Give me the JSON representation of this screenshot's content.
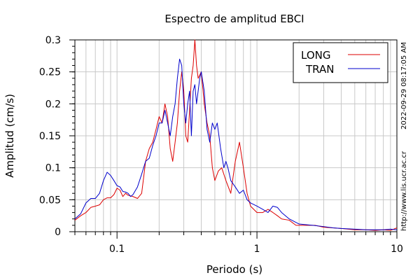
{
  "chart_data": {
    "type": "line",
    "title": "Espectro de amplitud EBCI",
    "xlabel": "Periodo (s)",
    "ylabel": "Amplitud (cm/s)",
    "x_scale": "log",
    "xlim": [
      0.05,
      10
    ],
    "ylim": [
      0,
      0.3
    ],
    "x_ticks": [
      {
        "value": 0.1,
        "label": "0.1"
      },
      {
        "value": 1,
        "label": "1"
      },
      {
        "value": 10,
        "label": "10"
      }
    ],
    "y_ticks": [
      {
        "value": 0,
        "label": "0"
      },
      {
        "value": 0.05,
        "label": "0.05"
      },
      {
        "value": 0.1,
        "label": "0.1"
      },
      {
        "value": 0.15,
        "label": "0.15"
      },
      {
        "value": 0.2,
        "label": "0.2"
      },
      {
        "value": 0.25,
        "label": "0.25"
      },
      {
        "value": 0.3,
        "label": "0.3"
      }
    ],
    "grid": true,
    "legend_position": "top-right",
    "series": [
      {
        "name": "LONG",
        "color": "#dd0000",
        "points": [
          [
            0.05,
            0.018
          ],
          [
            0.055,
            0.025
          ],
          [
            0.06,
            0.03
          ],
          [
            0.065,
            0.038
          ],
          [
            0.07,
            0.04
          ],
          [
            0.075,
            0.042
          ],
          [
            0.08,
            0.05
          ],
          [
            0.085,
            0.053
          ],
          [
            0.09,
            0.053
          ],
          [
            0.095,
            0.058
          ],
          [
            0.1,
            0.068
          ],
          [
            0.105,
            0.065
          ],
          [
            0.11,
            0.055
          ],
          [
            0.115,
            0.06
          ],
          [
            0.12,
            0.057
          ],
          [
            0.13,
            0.055
          ],
          [
            0.14,
            0.052
          ],
          [
            0.15,
            0.06
          ],
          [
            0.155,
            0.085
          ],
          [
            0.16,
            0.11
          ],
          [
            0.17,
            0.13
          ],
          [
            0.18,
            0.14
          ],
          [
            0.19,
            0.16
          ],
          [
            0.2,
            0.18
          ],
          [
            0.21,
            0.17
          ],
          [
            0.22,
            0.2
          ],
          [
            0.23,
            0.18
          ],
          [
            0.24,
            0.13
          ],
          [
            0.25,
            0.11
          ],
          [
            0.26,
            0.14
          ],
          [
            0.27,
            0.17
          ],
          [
            0.28,
            0.22
          ],
          [
            0.29,
            0.25
          ],
          [
            0.3,
            0.22
          ],
          [
            0.31,
            0.15
          ],
          [
            0.32,
            0.14
          ],
          [
            0.33,
            0.19
          ],
          [
            0.34,
            0.24
          ],
          [
            0.35,
            0.26
          ],
          [
            0.36,
            0.3
          ],
          [
            0.37,
            0.26
          ],
          [
            0.38,
            0.24
          ],
          [
            0.4,
            0.25
          ],
          [
            0.42,
            0.2
          ],
          [
            0.44,
            0.17
          ],
          [
            0.46,
            0.15
          ],
          [
            0.48,
            0.1
          ],
          [
            0.5,
            0.08
          ],
          [
            0.53,
            0.095
          ],
          [
            0.56,
            0.1
          ],
          [
            0.6,
            0.08
          ],
          [
            0.65,
            0.06
          ],
          [
            0.7,
            0.11
          ],
          [
            0.75,
            0.14
          ],
          [
            0.8,
            0.1
          ],
          [
            0.85,
            0.06
          ],
          [
            0.9,
            0.04
          ],
          [
            1.0,
            0.03
          ],
          [
            1.1,
            0.03
          ],
          [
            1.2,
            0.035
          ],
          [
            1.3,
            0.03
          ],
          [
            1.4,
            0.025
          ],
          [
            1.5,
            0.02
          ],
          [
            1.7,
            0.018
          ],
          [
            1.9,
            0.01
          ],
          [
            2.2,
            0.01
          ],
          [
            2.6,
            0.01
          ],
          [
            3.0,
            0.007
          ],
          [
            4.0,
            0.005
          ],
          [
            5.0,
            0.003
          ],
          [
            6.0,
            0.003
          ],
          [
            7.0,
            0.002
          ],
          [
            8.0,
            0.003
          ],
          [
            9.0,
            0.002
          ],
          [
            10.0,
            0.006
          ]
        ]
      },
      {
        "name": "TRAN",
        "color": "#0000cc",
        "points": [
          [
            0.05,
            0.02
          ],
          [
            0.055,
            0.028
          ],
          [
            0.06,
            0.045
          ],
          [
            0.065,
            0.052
          ],
          [
            0.07,
            0.052
          ],
          [
            0.075,
            0.06
          ],
          [
            0.08,
            0.08
          ],
          [
            0.085,
            0.093
          ],
          [
            0.09,
            0.088
          ],
          [
            0.095,
            0.08
          ],
          [
            0.1,
            0.072
          ],
          [
            0.105,
            0.07
          ],
          [
            0.11,
            0.063
          ],
          [
            0.115,
            0.062
          ],
          [
            0.12,
            0.06
          ],
          [
            0.125,
            0.055
          ],
          [
            0.13,
            0.058
          ],
          [
            0.14,
            0.07
          ],
          [
            0.15,
            0.09
          ],
          [
            0.16,
            0.11
          ],
          [
            0.17,
            0.115
          ],
          [
            0.18,
            0.135
          ],
          [
            0.19,
            0.15
          ],
          [
            0.2,
            0.17
          ],
          [
            0.21,
            0.17
          ],
          [
            0.22,
            0.19
          ],
          [
            0.23,
            0.17
          ],
          [
            0.24,
            0.15
          ],
          [
            0.25,
            0.18
          ],
          [
            0.26,
            0.2
          ],
          [
            0.27,
            0.24
          ],
          [
            0.28,
            0.27
          ],
          [
            0.29,
            0.26
          ],
          [
            0.3,
            0.2
          ],
          [
            0.31,
            0.17
          ],
          [
            0.32,
            0.2
          ],
          [
            0.33,
            0.22
          ],
          [
            0.34,
            0.15
          ],
          [
            0.35,
            0.22
          ],
          [
            0.36,
            0.23
          ],
          [
            0.37,
            0.2
          ],
          [
            0.38,
            0.22
          ],
          [
            0.39,
            0.24
          ],
          [
            0.4,
            0.25
          ],
          [
            0.42,
            0.22
          ],
          [
            0.44,
            0.16
          ],
          [
            0.46,
            0.14
          ],
          [
            0.48,
            0.17
          ],
          [
            0.5,
            0.16
          ],
          [
            0.52,
            0.17
          ],
          [
            0.55,
            0.13
          ],
          [
            0.58,
            0.1
          ],
          [
            0.6,
            0.11
          ],
          [
            0.62,
            0.1
          ],
          [
            0.65,
            0.08
          ],
          [
            0.7,
            0.07
          ],
          [
            0.75,
            0.06
          ],
          [
            0.8,
            0.065
          ],
          [
            0.85,
            0.05
          ],
          [
            0.9,
            0.045
          ],
          [
            1.0,
            0.04
          ],
          [
            1.1,
            0.035
          ],
          [
            1.2,
            0.03
          ],
          [
            1.3,
            0.04
          ],
          [
            1.4,
            0.038
          ],
          [
            1.5,
            0.03
          ],
          [
            1.7,
            0.02
          ],
          [
            2.0,
            0.012
          ],
          [
            2.5,
            0.01
          ],
          [
            3.0,
            0.008
          ],
          [
            3.5,
            0.006
          ],
          [
            4.0,
            0.005
          ],
          [
            5.0,
            0.004
          ],
          [
            6.0,
            0.003
          ],
          [
            7.0,
            0.003
          ],
          [
            8.0,
            0.003
          ],
          [
            9.0,
            0.004
          ],
          [
            10.0,
            0.003
          ]
        ]
      }
    ]
  },
  "side_labels": {
    "timestamp": "2022-09-29 08:17:05 AM",
    "url": "http://www.lis.ucr.ac.cr"
  }
}
